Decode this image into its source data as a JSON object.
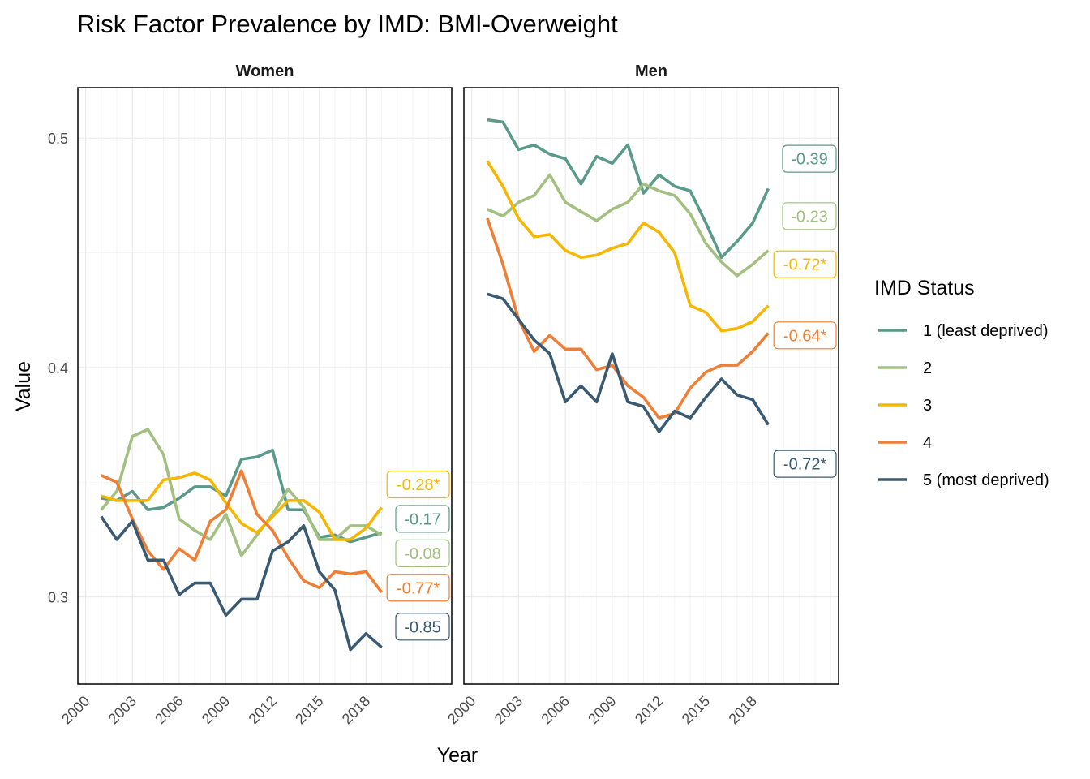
{
  "title": "Risk Factor Prevalence by IMD: BMI-Overweight",
  "xlabel": "Year",
  "ylabel": "Value",
  "legend": {
    "title": "IMD Status",
    "items": [
      {
        "label": "1 (least deprived)",
        "color": "#5a9a8a"
      },
      {
        "label": "2",
        "color": "#a2c080"
      },
      {
        "label": "3",
        "color": "#f7b600"
      },
      {
        "label": "4",
        "color": "#f07f35"
      },
      {
        "label": "5 (most deprived)",
        "color": "#3a5a72"
      }
    ]
  },
  "chart_data": {
    "type": "line",
    "x_ticks": [
      2000,
      2003,
      2006,
      2009,
      2012,
      2015,
      2018
    ],
    "y_ticks": [
      0.3,
      0.4,
      0.5
    ],
    "y_tick_labels": [
      "0.3",
      "0.4",
      "0.5"
    ],
    "xlim": [
      1999.5,
      2023.5
    ],
    "grid": true,
    "legend_position": "right",
    "x": [
      2001,
      2002,
      2003,
      2004,
      2005,
      2006,
      2007,
      2008,
      2009,
      2010,
      2011,
      2012,
      2013,
      2014,
      2015,
      2016,
      2017,
      2018,
      2019
    ],
    "panels": [
      {
        "name": "Women",
        "ylim": [
          0.262,
          0.522
        ],
        "series": [
          {
            "name": "1 (least deprived)",
            "values": [
              0.343,
              0.342,
              0.346,
              0.338,
              0.339,
              0.343,
              0.348,
              0.348,
              0.344,
              0.36,
              0.361,
              0.364,
              0.338,
              0.338,
              0.326,
              0.327,
              0.324,
              0.326,
              0.328
            ],
            "annotation": "-0.17",
            "ann_y": 0.334
          },
          {
            "name": "2",
            "values": [
              0.338,
              0.346,
              0.37,
              0.373,
              0.362,
              0.334,
              0.329,
              0.325,
              0.336,
              0.318,
              0.327,
              0.336,
              0.347,
              0.339,
              0.325,
              0.325,
              0.331,
              0.331,
              0.327
            ],
            "annotation": "-0.08",
            "ann_y": 0.319
          },
          {
            "name": "3",
            "values": [
              0.344,
              0.342,
              0.342,
              0.342,
              0.351,
              0.352,
              0.354,
              0.351,
              0.341,
              0.332,
              0.328,
              0.335,
              0.342,
              0.342,
              0.337,
              0.325,
              0.325,
              0.33,
              0.339
            ],
            "annotation": "-0.28*",
            "ann_y": 0.349
          },
          {
            "name": "4",
            "values": [
              0.353,
              0.35,
              0.334,
              0.32,
              0.312,
              0.321,
              0.316,
              0.333,
              0.338,
              0.355,
              0.336,
              0.329,
              0.317,
              0.307,
              0.304,
              0.311,
              0.31,
              0.311,
              0.302
            ],
            "annotation": "-0.77*",
            "ann_y": 0.304
          },
          {
            "name": "5 (most deprived)",
            "values": [
              0.335,
              0.325,
              0.333,
              0.316,
              0.316,
              0.301,
              0.306,
              0.306,
              0.292,
              0.299,
              0.299,
              0.32,
              0.324,
              0.331,
              0.311,
              0.303,
              0.277,
              0.284,
              0.278
            ],
            "annotation": "-0.85",
            "ann_y": 0.287
          }
        ]
      },
      {
        "name": "Men",
        "ylim": [
          0.262,
          0.522
        ],
        "series": [
          {
            "name": "1 (least deprived)",
            "values": [
              0.508,
              0.507,
              0.495,
              0.497,
              0.493,
              0.491,
              0.48,
              0.492,
              0.489,
              0.497,
              0.476,
              0.484,
              0.479,
              0.477,
              0.463,
              0.448,
              0.455,
              0.463,
              0.478
            ],
            "annotation": "-0.39",
            "ann_y": 0.491
          },
          {
            "name": "2",
            "values": [
              0.469,
              0.466,
              0.472,
              0.475,
              0.484,
              0.472,
              0.468,
              0.464,
              0.469,
              0.472,
              0.48,
              0.477,
              0.475,
              0.467,
              0.454,
              0.446,
              0.44,
              0.445,
              0.451
            ],
            "annotation": "-0.23",
            "ann_y": 0.466
          },
          {
            "name": "3",
            "values": [
              0.49,
              0.479,
              0.465,
              0.457,
              0.458,
              0.451,
              0.448,
              0.449,
              0.452,
              0.454,
              0.463,
              0.459,
              0.45,
              0.427,
              0.424,
              0.416,
              0.417,
              0.42,
              0.427
            ],
            "annotation": "-0.72*",
            "ann_y": 0.445
          },
          {
            "name": "4",
            "values": [
              0.465,
              0.445,
              0.421,
              0.407,
              0.414,
              0.408,
              0.408,
              0.399,
              0.401,
              0.392,
              0.387,
              0.378,
              0.38,
              0.391,
              0.398,
              0.401,
              0.401,
              0.407,
              0.415
            ],
            "annotation": "-0.64*",
            "ann_y": 0.414
          },
          {
            "name": "5 (most deprived)",
            "values": [
              0.432,
              0.43,
              0.421,
              0.412,
              0.406,
              0.385,
              0.392,
              0.385,
              0.406,
              0.385,
              0.383,
              0.372,
              0.381,
              0.378,
              0.387,
              0.395,
              0.388,
              0.386,
              0.375
            ],
            "annotation": "-0.72*",
            "ann_y": 0.358
          }
        ]
      }
    ]
  }
}
